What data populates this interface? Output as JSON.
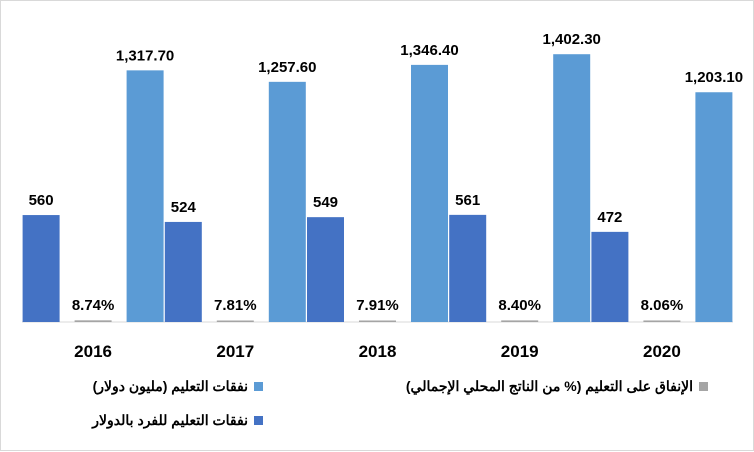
{
  "chart_data": {
    "type": "bar",
    "categories": [
      "2016",
      "2017",
      "2018",
      "2019",
      "2020"
    ],
    "series": [
      {
        "name": "نفقات التعليم للفرد بالدولار",
        "values": [
          560,
          524,
          549,
          561,
          472
        ],
        "labels": [
          "560",
          "524",
          "549",
          "561",
          "472"
        ],
        "color": "#4472c4"
      },
      {
        "name": "الإنفاق على التعليم (% من الناتج المحلي الإجمالي)",
        "values": [
          8.74,
          7.81,
          7.91,
          8.4,
          8.06
        ],
        "labels": [
          "8.74%",
          "7.81%",
          "7.91%",
          "8.40%",
          "8.06%"
        ],
        "color": "#a5a5a5"
      },
      {
        "name": "نفقات التعليم (مليون دولار)",
        "values": [
          1317.7,
          1257.6,
          1346.4,
          1402.3,
          1203.1
        ],
        "labels": [
          "1,317.70",
          "1,257.60",
          "1,346.40",
          "1,402.30",
          "1,203.10"
        ],
        "color": "#5b9bd5"
      }
    ],
    "ylim": [
      0,
      1550
    ],
    "grid": false,
    "legend_position": "bottom"
  }
}
